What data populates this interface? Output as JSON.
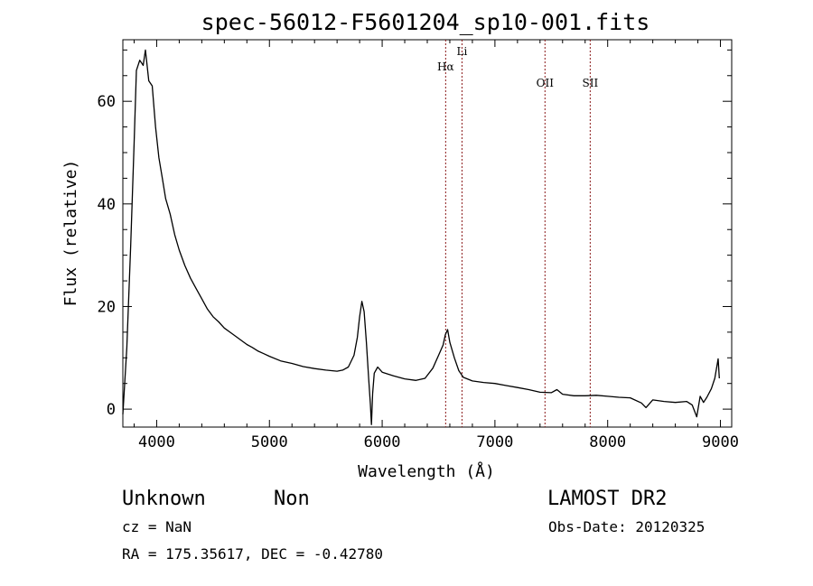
{
  "chart_data": {
    "type": "line",
    "title": "spec-56012-F5601204_sp10-001.fits",
    "xlabel": "Wavelength (Å)",
    "ylabel": "Flux (relative)",
    "xlim": [
      3700,
      9100
    ],
    "ylim": [
      -3.5,
      72
    ],
    "x_ticks": [
      "4000",
      "5000",
      "6000",
      "7000",
      "8000",
      "9000"
    ],
    "y_ticks": [
      "0",
      "20",
      "40",
      "60"
    ],
    "x_tick_values": [
      4000,
      5000,
      6000,
      7000,
      8000,
      9000
    ],
    "y_tick_values": [
      0,
      20,
      40,
      60
    ],
    "grid": false,
    "series": [
      {
        "points": [
          [
            3700,
            -1
          ],
          [
            3735,
            12
          ],
          [
            3770,
            32
          ],
          [
            3800,
            52
          ],
          [
            3820,
            66
          ],
          [
            3850,
            68
          ],
          [
            3880,
            67
          ],
          [
            3900,
            70
          ],
          [
            3930,
            64
          ],
          [
            3960,
            63
          ],
          [
            3990,
            55
          ],
          [
            4020,
            49
          ],
          [
            4050,
            45
          ],
          [
            4080,
            41
          ],
          [
            4120,
            38
          ],
          [
            4160,
            34
          ],
          [
            4200,
            31
          ],
          [
            4250,
            28
          ],
          [
            4300,
            25.5
          ],
          [
            4350,
            23.5
          ],
          [
            4400,
            21.5
          ],
          [
            4450,
            19.5
          ],
          [
            4500,
            18
          ],
          [
            4550,
            17
          ],
          [
            4600,
            15.8
          ],
          [
            4650,
            15
          ],
          [
            4700,
            14.2
          ],
          [
            4750,
            13.4
          ],
          [
            4800,
            12.6
          ],
          [
            4850,
            12
          ],
          [
            4900,
            11.3
          ],
          [
            4950,
            10.8
          ],
          [
            5000,
            10.3
          ],
          [
            5100,
            9.4
          ],
          [
            5200,
            8.9
          ],
          [
            5300,
            8.3
          ],
          [
            5400,
            7.9
          ],
          [
            5500,
            7.6
          ],
          [
            5600,
            7.4
          ],
          [
            5650,
            7.6
          ],
          [
            5700,
            8.2
          ],
          [
            5750,
            10.5
          ],
          [
            5780,
            14
          ],
          [
            5800,
            18
          ],
          [
            5820,
            21
          ],
          [
            5840,
            19
          ],
          [
            5860,
            13
          ],
          [
            5880,
            6
          ],
          [
            5895,
            1
          ],
          [
            5905,
            -3
          ],
          [
            5915,
            3
          ],
          [
            5930,
            7
          ],
          [
            5960,
            8.2
          ],
          [
            6000,
            7.2
          ],
          [
            6100,
            6.5
          ],
          [
            6200,
            5.9
          ],
          [
            6300,
            5.6
          ],
          [
            6380,
            6
          ],
          [
            6450,
            8
          ],
          [
            6500,
            10.5
          ],
          [
            6540,
            12.5
          ],
          [
            6560,
            14.5
          ],
          [
            6580,
            15.5
          ],
          [
            6600,
            13
          ],
          [
            6640,
            10
          ],
          [
            6680,
            7.5
          ],
          [
            6720,
            6.2
          ],
          [
            6800,
            5.5
          ],
          [
            6900,
            5.2
          ],
          [
            7000,
            5
          ],
          [
            7100,
            4.6
          ],
          [
            7200,
            4.2
          ],
          [
            7300,
            3.8
          ],
          [
            7400,
            3.3
          ],
          [
            7500,
            3.2
          ],
          [
            7550,
            3.8
          ],
          [
            7600,
            2.9
          ],
          [
            7700,
            2.6
          ],
          [
            7800,
            2.6
          ],
          [
            7900,
            2.7
          ],
          [
            8000,
            2.5
          ],
          [
            8100,
            2.3
          ],
          [
            8200,
            2.2
          ],
          [
            8300,
            1.2
          ],
          [
            8340,
            0.3
          ],
          [
            8400,
            1.8
          ],
          [
            8500,
            1.5
          ],
          [
            8600,
            1.3
          ],
          [
            8700,
            1.5
          ],
          [
            8750,
            0.8
          ],
          [
            8790,
            -1.5
          ],
          [
            8820,
            2.5
          ],
          [
            8850,
            1.3
          ],
          [
            8880,
            2.3
          ],
          [
            8920,
            4
          ],
          [
            8950,
            6
          ],
          [
            8980,
            9.8
          ],
          [
            8990,
            6
          ]
        ]
      }
    ],
    "lines": [
      {
        "label": "Hα",
        "x": 6563
      },
      {
        "label": "Li",
        "x": 6708
      },
      {
        "label": "OII",
        "x": 7444
      },
      {
        "label": "SII",
        "x": 7845
      }
    ],
    "line_color": "#8b1a1a"
  },
  "info": {
    "object_class": "Unknown",
    "object_subclass": "Non",
    "survey": "LAMOST DR2",
    "cz": "cz = NaN",
    "obs_date": "Obs-Date: 20120325",
    "coords": "RA = 175.35617, DEC =  -0.42780"
  }
}
